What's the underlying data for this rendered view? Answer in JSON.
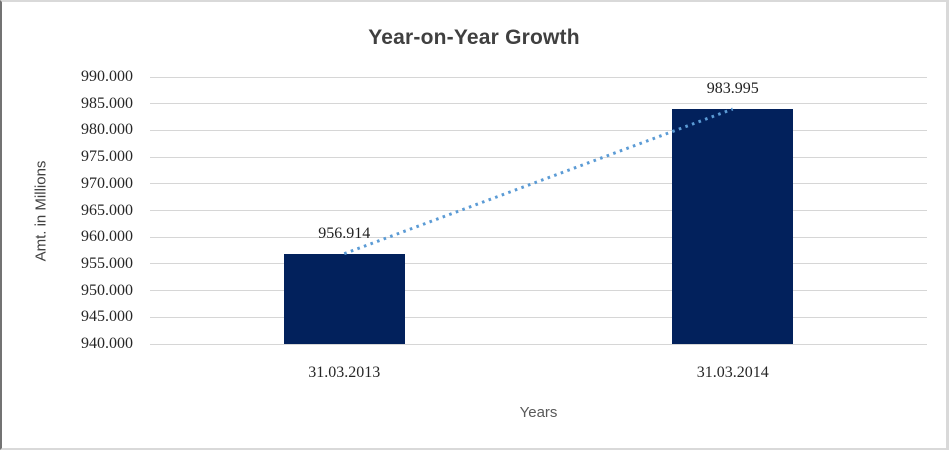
{
  "chart_data": {
    "type": "bar",
    "title": "Year-on-Year Growth",
    "xlabel": "Years",
    "ylabel": "Amt. in Millions",
    "categories": [
      "31.03.2013",
      "31.03.2014"
    ],
    "values": [
      956.914,
      983.995
    ],
    "value_labels": [
      "956.914",
      "983.995"
    ],
    "ylim": [
      940,
      990
    ],
    "ytick_step": 5,
    "ytick_labels": [
      "990.000",
      "985.000",
      "980.000",
      "975.000",
      "970.000",
      "965.000",
      "960.000",
      "955.000",
      "950.000",
      "945.000",
      "940.000"
    ],
    "grid": true,
    "legend": "none",
    "trendline": true,
    "colors": {
      "bar": "#02215C",
      "trend": "#5B9BD5",
      "grid": "#D6D6D6",
      "title": "#404040",
      "tick_text": "#262626",
      "axis_title": "#595959"
    }
  }
}
